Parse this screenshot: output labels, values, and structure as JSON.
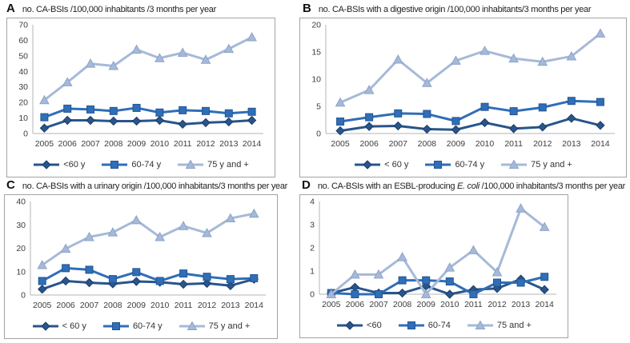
{
  "figure": {
    "background": "#ffffff",
    "border_color": "#a3a3a3"
  },
  "chart_data": [
    {
      "type": "line",
      "panel_letter": "A",
      "title_pre": "no. CA-BSIs /100,000 inhabitants /3 months per year",
      "title_italic": "",
      "title_post": "",
      "xlabel": "",
      "ylabel": "",
      "x": [
        "2005",
        "2006",
        "2007",
        "2008",
        "2009",
        "2010",
        "2011",
        "2012",
        "2013",
        "2014"
      ],
      "ylim": [
        0,
        70
      ],
      "yticks": [
        0,
        10,
        20,
        30,
        40,
        50,
        60,
        70
      ],
      "grid": false,
      "legend_position": "bottom",
      "series": [
        {
          "name": "<60 y",
          "marker": "diamond",
          "color": "#28558C",
          "edge": "#1c3c66",
          "values": [
            3.5,
            8.5,
            8.5,
            8,
            8,
            8.5,
            6,
            7,
            7.5,
            8.5
          ]
        },
        {
          "name": "60-74 y",
          "marker": "square",
          "color": "#2F6EB8",
          "edge": "#245691",
          "values": [
            10.5,
            16,
            15.5,
            14.5,
            16.5,
            13.5,
            15,
            14.5,
            13,
            14
          ]
        },
        {
          "name": "75 y and +",
          "marker": "triangle",
          "color": "#A6B9D8",
          "edge": "#8CA4C8",
          "values": [
            21.5,
            33,
            45,
            43.5,
            54,
            48.5,
            52,
            47.5,
            54.5,
            62
          ]
        }
      ]
    },
    {
      "type": "line",
      "panel_letter": "B",
      "title_pre": "no. CA-BSIs with a digestive origin /100,000 inhabitants/3 months per year",
      "title_italic": "",
      "title_post": "",
      "xlabel": "",
      "ylabel": "",
      "x": [
        "2005",
        "2006",
        "2007",
        "2008",
        "2009",
        "2010",
        "2011",
        "2012",
        "2013",
        "2014"
      ],
      "ylim": [
        0,
        20
      ],
      "yticks": [
        0,
        5,
        10,
        15,
        20
      ],
      "grid": false,
      "legend_position": "bottom",
      "series": [
        {
          "name": "< 60 y",
          "marker": "diamond",
          "color": "#28558C",
          "edge": "#1c3c66",
          "values": [
            0.5,
            1.3,
            1.4,
            0.8,
            0.7,
            2.0,
            0.9,
            1.2,
            2.8,
            1.5
          ]
        },
        {
          "name": "60-74 y",
          "marker": "square",
          "color": "#2F6EB8",
          "edge": "#245691",
          "values": [
            2.2,
            3.0,
            3.7,
            3.6,
            2.3,
            4.9,
            4.1,
            4.8,
            6.0,
            5.8
          ]
        },
        {
          "name": "75 y and +",
          "marker": "triangle",
          "color": "#A6B9D8",
          "edge": "#8CA4C8",
          "values": [
            5.7,
            8.0,
            13.6,
            9.3,
            13.4,
            15.2,
            13.8,
            13.2,
            14.2,
            18.4
          ]
        }
      ]
    },
    {
      "type": "line",
      "panel_letter": "C",
      "title_pre": "no. CA-BSIs with a urinary origin /100,000 inhabitants/3 months per year",
      "title_italic": "",
      "title_post": "",
      "xlabel": "",
      "ylabel": "",
      "x": [
        "2005",
        "2006",
        "2007",
        "2008",
        "2009",
        "2010",
        "2011",
        "2012",
        "2013",
        "2014"
      ],
      "ylim": [
        0,
        40
      ],
      "yticks": [
        0,
        10,
        20,
        30,
        40
      ],
      "grid": false,
      "legend_position": "bottom",
      "series": [
        {
          "name": "< 60 y",
          "marker": "diamond",
          "color": "#28558C",
          "edge": "#1c3c66",
          "values": [
            2.5,
            6.0,
            5.3,
            4.8,
            5.8,
            5.5,
            4.6,
            5.0,
            4.0,
            6.8
          ]
        },
        {
          "name": "60-74 y",
          "marker": "square",
          "color": "#2F6EB8",
          "edge": "#245691",
          "values": [
            6.0,
            11.5,
            10.8,
            6.8,
            9.8,
            6.0,
            9.2,
            7.8,
            6.8,
            7.2
          ]
        },
        {
          "name": "75 y and +",
          "marker": "triangle",
          "color": "#A6B9D8",
          "edge": "#8CA4C8",
          "values": [
            12.8,
            19.8,
            24.8,
            26.8,
            32.0,
            24.8,
            29.5,
            26.5,
            32.8,
            34.8
          ]
        }
      ]
    },
    {
      "type": "line",
      "panel_letter": "D",
      "title_pre": "no. CA-BSIs with an ESBL-producing ",
      "title_italic": "E. coli",
      "title_post": " /100,000 inhabitants/3 months per year",
      "xlabel": "",
      "ylabel": "",
      "x": [
        "2005",
        "2006",
        "2007",
        "2008",
        "2009",
        "2010",
        "2011",
        "2012",
        "2013",
        "2014"
      ],
      "ylim": [
        0,
        4
      ],
      "yticks": [
        0,
        1,
        2,
        3,
        4
      ],
      "grid": false,
      "legend_position": "bottom",
      "series": [
        {
          "name": "<60",
          "marker": "diamond",
          "color": "#28558C",
          "edge": "#1c3c66",
          "values": [
            0.05,
            0.3,
            0.05,
            0.05,
            0.35,
            0.0,
            0.2,
            0.25,
            0.65,
            0.2
          ]
        },
        {
          "name": "60-74",
          "marker": "square",
          "color": "#2F6EB8",
          "edge": "#245691",
          "values": [
            0.05,
            0.0,
            0.0,
            0.6,
            0.6,
            0.55,
            0.0,
            0.5,
            0.5,
            0.75
          ]
        },
        {
          "name": "75 and +",
          "marker": "triangle",
          "color": "#A6B9D8",
          "edge": "#8CA4C8",
          "values": [
            0.0,
            0.85,
            0.85,
            1.6,
            0.0,
            1.15,
            1.9,
            0.95,
            3.7,
            2.9
          ]
        }
      ]
    }
  ]
}
